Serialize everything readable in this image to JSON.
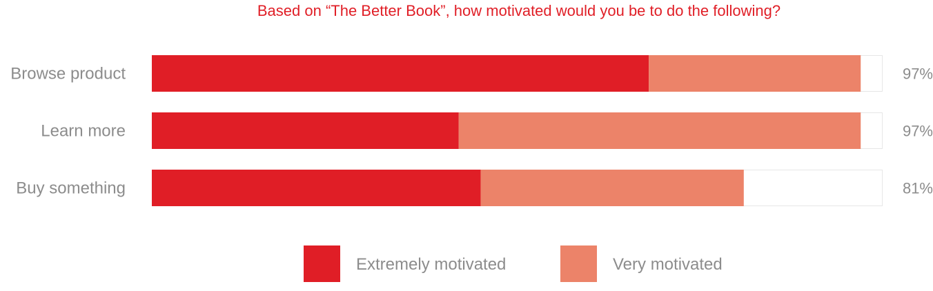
{
  "chart_data": {
    "type": "bar",
    "orientation": "horizontal",
    "stacked": true,
    "title": "Based on “The Better Book”, how motivated would you be to do the following?",
    "categories": [
      "Browse product",
      "Learn more",
      "Buy something"
    ],
    "series": [
      {
        "name": "Extremely motivated",
        "color": "#e01e26",
        "values": [
          68,
          42,
          45
        ]
      },
      {
        "name": "Very motivated",
        "color": "#ec8369",
        "values": [
          29,
          55,
          36
        ]
      }
    ],
    "totals": [
      "97%",
      "97%",
      "81%"
    ],
    "xlim": [
      0,
      100
    ],
    "grid": false,
    "legend": {
      "position": "bottom",
      "items": [
        "Extremely motivated",
        "Very motivated"
      ]
    }
  }
}
